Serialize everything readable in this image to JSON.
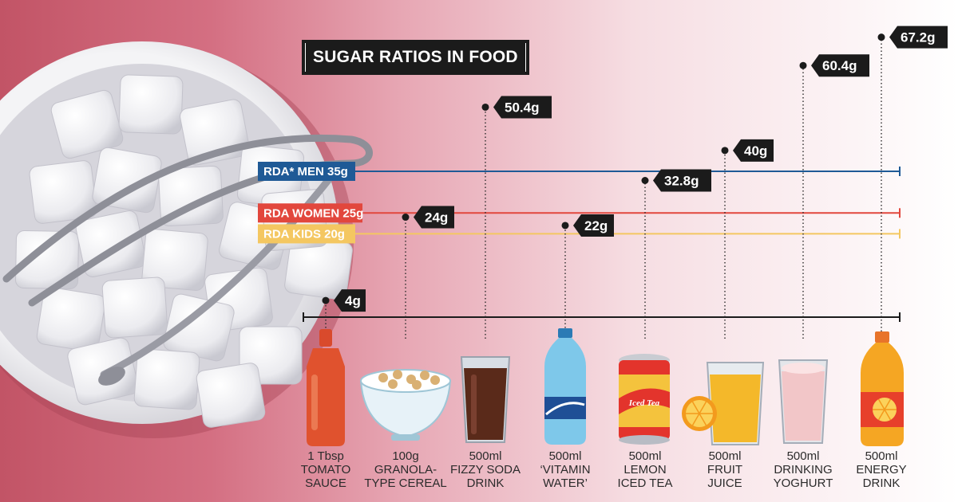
{
  "title": "SUGAR RATIOS IN FOOD",
  "chart_data": {
    "type": "bar",
    "title": "SUGAR RATIOS IN FOOD",
    "unit": "g",
    "ylim": [
      0,
      67.2
    ],
    "categories": [
      [
        "1 Tbsp",
        "TOMATO",
        "SAUCE"
      ],
      [
        "100g",
        "GRANOLA-",
        "TYPE CEREAL"
      ],
      [
        "500ml",
        "FIZZY SODA",
        "DRINK"
      ],
      [
        "500ml",
        "‘VITAMIN",
        "WATER’"
      ],
      [
        "500ml",
        "LEMON",
        "ICED TEA"
      ],
      [
        "500ml",
        "FRUIT",
        "JUICE"
      ],
      [
        "500ml",
        "DRINKING",
        "YOGHURT"
      ],
      [
        "500ml",
        "ENERGY",
        "DRINK"
      ]
    ],
    "values": [
      4,
      24,
      50.4,
      22,
      32.8,
      40,
      60.4,
      67.2
    ],
    "value_labels": [
      "4g",
      "24g",
      "50.4g",
      "22g",
      "32.8g",
      "40g",
      "60.4g",
      "67.2g"
    ],
    "reference_lines": [
      {
        "label": "RDA* MEN 35g",
        "value": 35,
        "color": "#1f5a96"
      },
      {
        "label": "RDA WOMEN 25g",
        "value": 25,
        "color": "#e2473d"
      },
      {
        "label": "RDA KIDS 20g",
        "value": 20,
        "color": "#f4c761"
      }
    ],
    "icons": [
      "ketchup-bottle-icon",
      "cereal-bowl-icon",
      "soda-glass-icon",
      "water-bottle-icon",
      "iced-tea-can-icon",
      "juice-glass-icon",
      "yoghurt-glass-icon",
      "energy-drink-bottle-icon"
    ],
    "can_text": "Iced Tea",
    "colors": {
      "label_bg": "#1b1b1b",
      "baseline": "#1b1b1b",
      "category_text": "#2b2b2b"
    }
  }
}
